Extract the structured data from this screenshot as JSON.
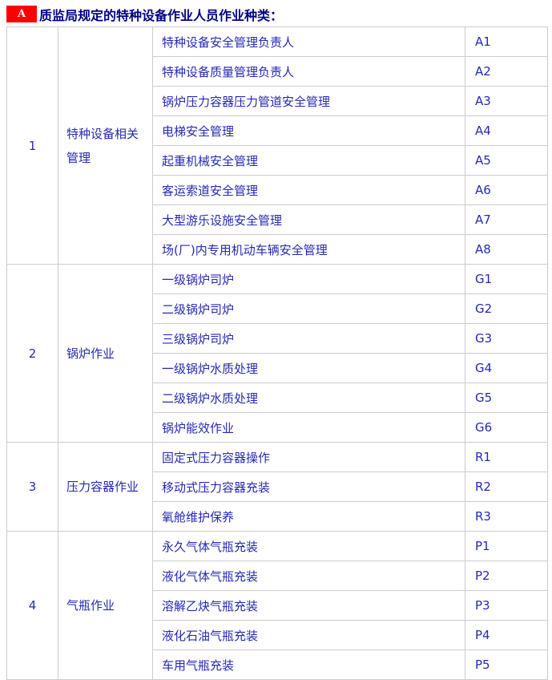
{
  "header": {
    "badge_label": "A",
    "title": "质监局规定的特种设备作业人员作业种类："
  },
  "colors": {
    "badge_red": "#fe0000",
    "badge_text_white": "#ffffff",
    "title_navy": "#000085",
    "cell_text_blue": "#2629b2",
    "border_gray": "#cccccc"
  },
  "table": {
    "groups": [
      {
        "no": "1",
        "category": "特种设备相关管理",
        "items": [
          {
            "name": "特种设备安全管理负责人",
            "code": "A1"
          },
          {
            "name": "特种设备质量管理负责人",
            "code": "A2"
          },
          {
            "name": "锅炉压力容器压力管道安全管理",
            "code": "A3"
          },
          {
            "name": "电梯安全管理",
            "code": "A4"
          },
          {
            "name": "起重机械安全管理",
            "code": "A5"
          },
          {
            "name": "客运索道安全管理",
            "code": "A6"
          },
          {
            "name": "大型游乐设施安全管理",
            "code": "A7"
          },
          {
            "name": "场(厂)内专用机动车辆安全管理",
            "code": "A8"
          }
        ]
      },
      {
        "no": "2",
        "category": "锅炉作业",
        "items": [
          {
            "name": "一级锅炉司炉",
            "code": "G1"
          },
          {
            "name": "二级锅炉司炉",
            "code": "G2"
          },
          {
            "name": "三级锅炉司炉",
            "code": "G3"
          },
          {
            "name": "一级锅炉水质处理",
            "code": "G4"
          },
          {
            "name": "二级锅炉水质处理",
            "code": "G5"
          },
          {
            "name": "锅炉能效作业",
            "code": "G6"
          }
        ]
      },
      {
        "no": "3",
        "category": "压力容器作业",
        "items": [
          {
            "name": "固定式压力容器操作",
            "code": "R1"
          },
          {
            "name": "移动式压力容器充装",
            "code": "R2"
          },
          {
            "name": "氧舱维护保养",
            "code": "R3"
          }
        ]
      },
      {
        "no": "4",
        "category": "气瓶作业",
        "items": [
          {
            "name": "永久气体气瓶充装",
            "code": "P1"
          },
          {
            "name": "液化气体气瓶充装",
            "code": "P2"
          },
          {
            "name": "溶解乙炔气瓶充装",
            "code": "P3"
          },
          {
            "name": "液化石油气瓶充装",
            "code": "P4"
          },
          {
            "name": "车用气瓶充装",
            "code": "P5"
          }
        ]
      }
    ]
  }
}
